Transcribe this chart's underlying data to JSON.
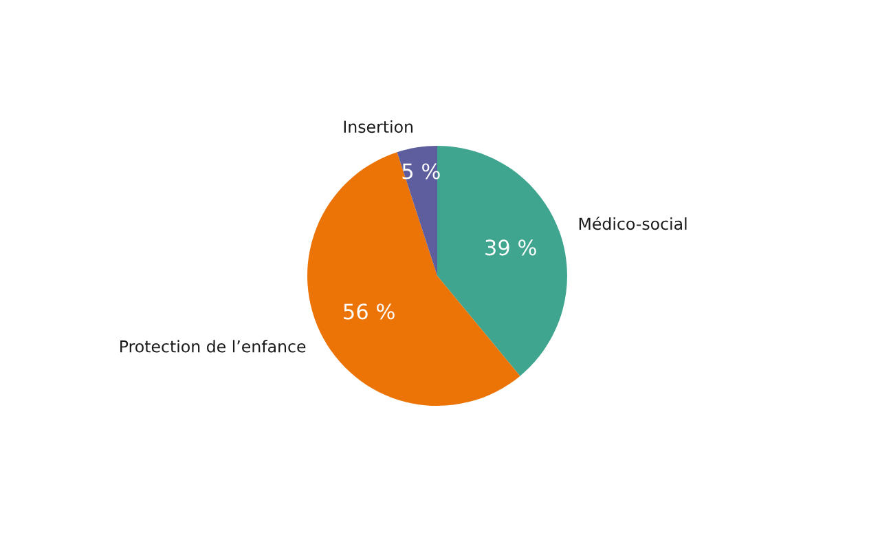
{
  "chart_data": {
    "type": "pie",
    "categories": [
      "Médico-social",
      "Protection de l’enfance",
      "Insertion"
    ],
    "values": [
      39,
      56,
      5
    ],
    "colors": [
      "#3fa58f",
      "#ec7407",
      "#5e5e9e"
    ],
    "value_labels": [
      "39 %",
      "56 %",
      "5 %"
    ]
  }
}
